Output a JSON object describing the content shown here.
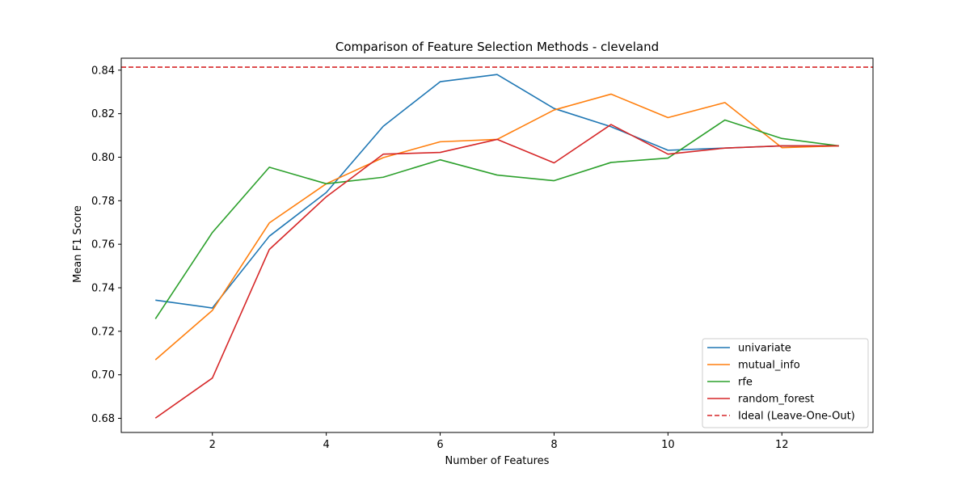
{
  "chart_data": {
    "type": "line",
    "title": "Comparison of Feature Selection Methods - cleveland",
    "xlabel": "Number of Features",
    "ylabel": "Mean F1 Score",
    "xlim": [
      0.4,
      13.6
    ],
    "ylim": [
      0.6735,
      0.8455
    ],
    "x_ticks": [
      2,
      4,
      6,
      8,
      10,
      12
    ],
    "y_ticks": [
      0.68,
      0.7,
      0.72,
      0.74,
      0.76,
      0.78,
      0.8,
      0.82,
      0.84
    ],
    "x_tick_labels": [
      "2",
      "4",
      "6",
      "8",
      "10",
      "12"
    ],
    "y_tick_labels": [
      "0.68",
      "0.70",
      "0.72",
      "0.74",
      "0.76",
      "0.78",
      "0.80",
      "0.82",
      "0.84"
    ],
    "grid": false,
    "legend_position": "lower-right",
    "x": [
      1,
      2,
      3,
      4,
      5,
      6,
      7,
      8,
      9,
      10,
      11,
      12,
      13
    ],
    "series": [
      {
        "name": "univariate",
        "color": "#1f77b4",
        "values": [
          0.7343,
          0.7307,
          0.7637,
          0.7838,
          0.8142,
          0.8347,
          0.838,
          0.8224,
          0.814,
          0.8032,
          0.8042,
          0.8052,
          0.8052
        ]
      },
      {
        "name": "mutual_info",
        "color": "#ff7f0e",
        "values": [
          0.7069,
          0.7296,
          0.7698,
          0.7878,
          0.7998,
          0.8071,
          0.8082,
          0.8217,
          0.829,
          0.8182,
          0.8251,
          0.8044,
          0.8052
        ]
      },
      {
        "name": "rfe",
        "color": "#2ca02c",
        "values": [
          0.7257,
          0.7654,
          0.7954,
          0.7878,
          0.7908,
          0.7988,
          0.7918,
          0.7892,
          0.7976,
          0.7996,
          0.8171,
          0.8086,
          0.8052
        ]
      },
      {
        "name": "random_forest",
        "color": "#d62728",
        "values": [
          0.6801,
          0.6985,
          0.7576,
          0.7818,
          0.8014,
          0.8022,
          0.8082,
          0.7974,
          0.815,
          0.8014,
          0.8042,
          0.8052,
          0.8052
        ]
      }
    ],
    "reference_line": {
      "name": "Ideal (Leave-One-Out)",
      "value": 0.8414,
      "color": "#d62728",
      "style": "dashed"
    }
  }
}
